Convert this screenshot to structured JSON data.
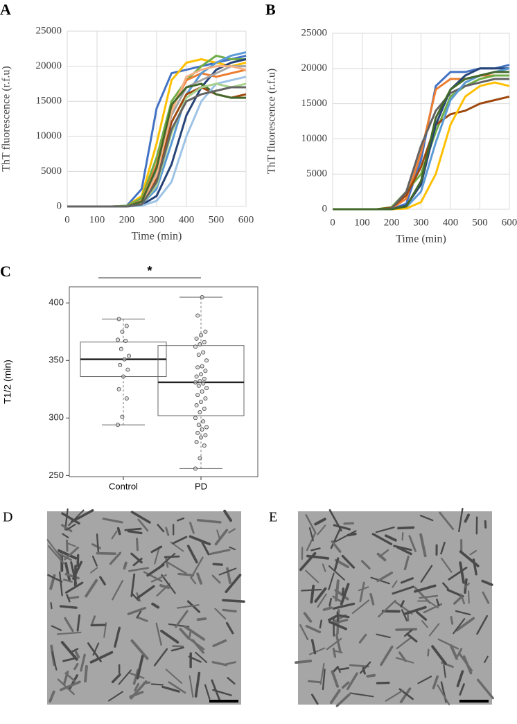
{
  "chart_data": [
    {
      "type": "line",
      "panel": "A",
      "x_label": "Time (min)",
      "y_label": "ThT fluorescence (r.f.u)",
      "x": [
        0,
        50,
        100,
        150,
        200,
        250,
        300,
        350,
        400,
        450,
        500,
        550,
        600
      ],
      "xlim": [
        0,
        600
      ],
      "xticks": [
        0,
        100,
        200,
        300,
        400,
        500,
        600
      ],
      "ylim": [
        0,
        25000
      ],
      "yticks": [
        0,
        5000,
        10000,
        15000,
        20000,
        25000
      ],
      "grid": true,
      "series": [
        {
          "color": "#4472c4",
          "values": [
            0,
            0,
            0,
            0,
            100,
            2500,
            14000,
            19000,
            19500,
            20000,
            20500,
            21000,
            21500
          ]
        },
        {
          "color": "#ffc000",
          "values": [
            0,
            0,
            0,
            0,
            50,
            1500,
            9000,
            18000,
            20500,
            21000,
            20500,
            20000,
            20500
          ]
        },
        {
          "color": "#70ad47",
          "values": [
            0,
            0,
            0,
            0,
            100,
            1200,
            7000,
            15000,
            18000,
            20000,
            21500,
            21000,
            21000
          ]
        },
        {
          "color": "#ed7d31",
          "values": [
            0,
            0,
            0,
            0,
            0,
            800,
            6000,
            14000,
            18000,
            19000,
            18500,
            19000,
            19500
          ]
        },
        {
          "color": "#5b9bd5",
          "values": [
            0,
            0,
            0,
            0,
            0,
            300,
            2500,
            9000,
            16000,
            19000,
            20500,
            21500,
            22000
          ]
        },
        {
          "color": "#264478",
          "values": [
            0,
            0,
            0,
            0,
            0,
            200,
            1500,
            6000,
            13000,
            17000,
            19500,
            20500,
            21000
          ]
        },
        {
          "color": "#9e480e",
          "values": [
            0,
            0,
            0,
            0,
            0,
            400,
            4000,
            12000,
            16000,
            17000,
            16000,
            15500,
            16000
          ]
        },
        {
          "color": "#a5a5a5",
          "values": [
            0,
            0,
            0,
            0,
            0,
            600,
            5000,
            13000,
            17000,
            18000,
            19000,
            20000,
            20000
          ]
        },
        {
          "color": "#f4b183",
          "values": [
            0,
            0,
            0,
            0,
            0,
            500,
            4500,
            13500,
            18500,
            19500,
            20000,
            20000,
            19500
          ]
        },
        {
          "color": "#43682b",
          "values": [
            0,
            0,
            0,
            0,
            0,
            700,
            5500,
            14500,
            17000,
            17500,
            16000,
            15500,
            15500
          ]
        },
        {
          "color": "#9dc3e6",
          "values": [
            0,
            0,
            0,
            0,
            0,
            100,
            800,
            3500,
            10000,
            15000,
            17500,
            18000,
            18500
          ]
        },
        {
          "color": "#a9d18e",
          "values": [
            0,
            0,
            0,
            0,
            0,
            300,
            3000,
            10500,
            15500,
            17000,
            17500,
            17000,
            17500
          ]
        },
        {
          "color": "#636363",
          "values": [
            0,
            0,
            0,
            0,
            0,
            300,
            3500,
            11000,
            15000,
            16000,
            16500,
            17000,
            17000
          ]
        }
      ]
    },
    {
      "type": "line",
      "panel": "B",
      "x_label": "Time (min)",
      "y_label": "ThT fluorescence (r.f.u)",
      "x": [
        0,
        50,
        100,
        150,
        200,
        250,
        300,
        350,
        400,
        450,
        500,
        550,
        600
      ],
      "xlim": [
        0,
        600
      ],
      "xticks": [
        0,
        100,
        200,
        300,
        400,
        500,
        600
      ],
      "ylim": [
        0,
        25000
      ],
      "yticks": [
        0,
        5000,
        10000,
        15000,
        20000,
        25000
      ],
      "grid": true,
      "series": [
        {
          "color": "#4472c4",
          "values": [
            0,
            0,
            0,
            0,
            0,
            800,
            7000,
            17500,
            19500,
            19500,
            20000,
            20000,
            20500
          ]
        },
        {
          "color": "#ed7d31",
          "values": [
            0,
            0,
            0,
            0,
            100,
            1500,
            8000,
            17000,
            18500,
            18500,
            19000,
            19000,
            19000
          ]
        },
        {
          "color": "#70ad47",
          "values": [
            0,
            0,
            0,
            0,
            300,
            2500,
            5000,
            11000,
            16000,
            17500,
            18500,
            19000,
            19000
          ]
        },
        {
          "color": "#9e480e",
          "values": [
            0,
            0,
            0,
            0,
            200,
            2000,
            6000,
            12000,
            13500,
            14000,
            15000,
            15500,
            16000
          ]
        },
        {
          "color": "#636363",
          "values": [
            0,
            0,
            0,
            0,
            100,
            2500,
            9000,
            14000,
            16500,
            17500,
            18000,
            18500,
            18500
          ]
        },
        {
          "color": "#264478",
          "values": [
            0,
            0,
            0,
            0,
            0,
            500,
            3500,
            12000,
            17000,
            19000,
            20000,
            20000,
            20000
          ]
        },
        {
          "color": "#5b9bd5",
          "values": [
            0,
            0,
            0,
            0,
            0,
            300,
            2500,
            9500,
            15500,
            18000,
            19000,
            19500,
            20000
          ]
        },
        {
          "color": "#ffc000",
          "values": [
            0,
            0,
            0,
            0,
            0,
            100,
            1000,
            5000,
            12000,
            16000,
            17500,
            18000,
            17500
          ]
        },
        {
          "color": "#43682b",
          "values": [
            0,
            0,
            0,
            0,
            0,
            400,
            4000,
            13000,
            17000,
            18500,
            19000,
            19500,
            19500
          ]
        }
      ]
    },
    {
      "type": "box",
      "panel": "C",
      "y_label": "T1/2 (min)",
      "annotation": "*",
      "categories": [
        "Control",
        "PD"
      ],
      "ylim": [
        249,
        414
      ],
      "yticks": [
        250,
        300,
        350,
        400
      ],
      "boxes": [
        {
          "min": 294,
          "q1": 336,
          "median": 351,
          "q3": 366,
          "max": 386,
          "points": [
            294,
            301,
            317,
            325,
            336,
            342,
            346,
            351,
            354,
            360,
            367,
            368,
            375,
            380,
            386
          ]
        },
        {
          "min": 256,
          "q1": 302,
          "median": 331,
          "q3": 363,
          "max": 405,
          "points": [
            256,
            265,
            276,
            279,
            283,
            285,
            287,
            290,
            292,
            294,
            297,
            300,
            305,
            308,
            311,
            314,
            317,
            320,
            323,
            326,
            328,
            330,
            331,
            332,
            334,
            336,
            338,
            341,
            344,
            345,
            350,
            355,
            357,
            362,
            364,
            366,
            369,
            372,
            375,
            389,
            405
          ]
        }
      ]
    }
  ],
  "images": [
    {
      "label": "D"
    },
    {
      "label": "E"
    }
  ]
}
